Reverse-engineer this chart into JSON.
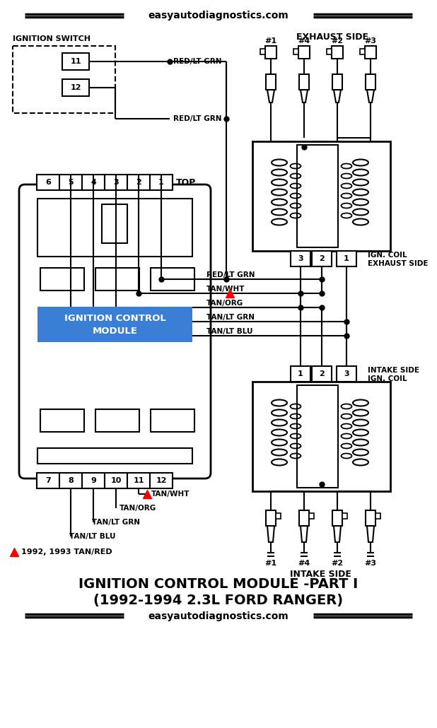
{
  "title_line1": "IGNITION CONTROL MODULE -PART I",
  "title_line2": "(1992-1994 2.3L FORD RANGER)",
  "website": "easyautodiagnostics.com",
  "note": "1992, 1993 TAN/RED",
  "bg_color": "#ffffff",
  "text_color": "#000000",
  "blue_label_bg": "#3a7fd5",
  "blue_label_text": "#ffffff",
  "red_color": "#cc0000",
  "gray_color": "#aaaaaa",
  "exhaust_labels": [
    "#1",
    "#4",
    "#2",
    "#3"
  ],
  "intake_labels": [
    "#1",
    "#4",
    "#2",
    "#3"
  ],
  "connector_top_pins": [
    "6",
    "5",
    "4",
    "3",
    "2",
    "1"
  ],
  "connector_bottom_pins": [
    "7",
    "8",
    "9",
    "10",
    "11",
    "12"
  ],
  "ignition_switch_label": "IGNITION SWITCH",
  "icm_label_1": "IGNITION CONTROL",
  "icm_label_2": "MODULE",
  "top_label": "TOP",
  "exhaust_side_label": "EXHAUST SIDE",
  "intake_side_label": "INTAKE SIDE",
  "ign_coil_exhaust_1": "IGN. COIL",
  "ign_coil_exhaust_2": "EXHAUST SIDE",
  "intake_side_ign_1": "INTAKE SIDE",
  "intake_side_ign_2": "IGN. COIL",
  "wire1": "RED/LT GRN",
  "wire2": "TAN/WHT",
  "wire3": "TAN/ORG",
  "wire4": "TAN/LT GRN",
  "wire5": "TAN/LT BLU"
}
